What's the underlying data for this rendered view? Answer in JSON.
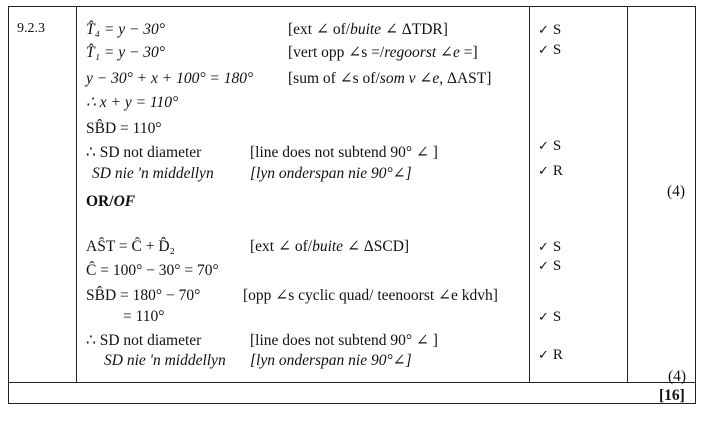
{
  "question": {
    "number": "9.2.3"
  },
  "solution1": [
    {
      "stmt": "T̂₄ = y − 30°",
      "reason": "[ext ∠ of/",
      "reason_i": "buite",
      "reason_tail": " ∠ ΔTDR]",
      "mark": "S"
    },
    {
      "stmt": "T̂₁ = y − 30°",
      "reason": "[vert opp ∠s =/",
      "reason_i": "regoorst ∠e",
      "reason_tail": " =]",
      "mark": "S"
    },
    {
      "stmt": "y − 30° + x + 100° = 180°",
      "reason": "[sum of ∠s of/",
      "reason_i": "som v ∠e,",
      "reason_tail": " ΔAST]",
      "mark": ""
    },
    {
      "stmt": "∴ x + y = 110°"
    },
    {
      "stmt": "SB̂D = 110°",
      "mark": "S"
    },
    {
      "stmt": "∴ SD not diameter",
      "reason": "[line does not subtend 90° ∠ ]",
      "mark": "R"
    },
    {
      "stmt": "SD nie 'n middellyn",
      "reason": "[lyn onderspan nie 90°∠]"
    }
  ],
  "or_label": {
    "a": "OR/",
    "b": "OF"
  },
  "solution2": [
    {
      "stmt": "AŜT = Ĉ + D̂₂",
      "reason": "[ext ∠ of/",
      "reason_i": "buite",
      "reason_tail": " ∠ ΔSCD]",
      "mark": "S"
    },
    {
      "stmt": "Ĉ = 100° − 30° = 70°",
      "mark": "S"
    },
    {
      "stmt": "SB̂D = 180° − 70°",
      "reason": "[opp ∠s cyclic quad/ teenoorst ∠e kdvh]"
    },
    {
      "stmt": "= 110°",
      "mark": "S"
    },
    {
      "stmt": "∴ SD not diameter",
      "reason": "[line does not subtend 90° ∠ ]"
    },
    {
      "stmt": "SD nie 'n middellyn",
      "reason": "[lyn onderspan nie 90°∠]",
      "mark": "R"
    }
  ],
  "tick_symbol": "✓",
  "subtotal_1": "(4)",
  "subtotal_2": "(4)",
  "total": "[16]"
}
